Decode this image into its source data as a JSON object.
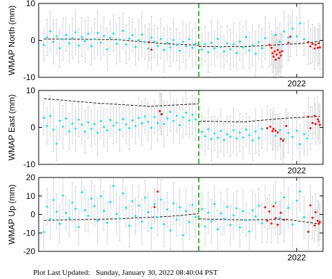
{
  "footer": {
    "label": "Plot Last Updated:",
    "timestamp": "Sunday, January 30, 2022 08:40:04 PST"
  },
  "colors": {
    "point_primary": "#00e5ee",
    "point_recent": "#ff0000",
    "error_bar": "#cccccc",
    "trend_line": "#000000",
    "event_marker": "#33bb33"
  },
  "chart_data": [
    {
      "type": "scatter",
      "ylabel": "WMAP North (mm)",
      "ylim": [
        -10,
        10
      ],
      "yticks": [
        -10,
        0,
        10
      ],
      "xlim": [
        2019.55,
        2022.25
      ],
      "xticks": [
        2022
      ],
      "xticklabels": [
        "2022"
      ],
      "event_marker_x": 2021.07,
      "primary_points": [
        [
          2019.6,
          -1.2
        ],
        [
          2019.63,
          0.8
        ],
        [
          2019.66,
          2.5
        ],
        [
          2019.69,
          -0.4
        ],
        [
          2019.72,
          1.1
        ],
        [
          2019.75,
          -2.1
        ],
        [
          2019.78,
          0.3
        ],
        [
          2019.81,
          1.5
        ],
        [
          2019.84,
          -0.8
        ],
        [
          2019.87,
          0.6
        ],
        [
          2019.9,
          2.2
        ],
        [
          2019.93,
          -1.4
        ],
        [
          2019.96,
          0.9
        ],
        [
          2019.99,
          -0.2
        ],
        [
          2020.02,
          1.8
        ],
        [
          2020.05,
          -1.6
        ],
        [
          2020.08,
          0.4
        ],
        [
          2020.11,
          2.0
        ],
        [
          2020.14,
          -0.6
        ],
        [
          2020.17,
          1.2
        ],
        [
          2020.2,
          -2.4
        ],
        [
          2020.23,
          0.7
        ],
        [
          2020.26,
          1.9
        ],
        [
          2020.29,
          -0.9
        ],
        [
          2020.32,
          0.2
        ],
        [
          2020.35,
          2.6
        ],
        [
          2020.38,
          -1.1
        ],
        [
          2020.41,
          0.5
        ],
        [
          2020.44,
          1.4
        ],
        [
          2020.47,
          -1.8
        ],
        [
          2020.5,
          0.1
        ],
        [
          2020.53,
          1.6
        ],
        [
          2020.56,
          -0.5
        ],
        [
          2020.59,
          -2.2
        ],
        [
          2020.62,
          0.8
        ],
        [
          2020.65,
          -0.3
        ],
        [
          2020.68,
          -1.5
        ],
        [
          2020.71,
          0.4
        ],
        [
          2020.74,
          -2.6
        ],
        [
          2020.77,
          -0.7
        ],
        [
          2020.8,
          -1.9
        ],
        [
          2020.83,
          0.1
        ],
        [
          2020.86,
          -1.2
        ],
        [
          2020.89,
          -2.8
        ],
        [
          2020.92,
          -0.4
        ],
        [
          2020.95,
          -1.6
        ],
        [
          2020.98,
          0.3
        ],
        [
          2021.01,
          -2.0
        ],
        [
          2021.04,
          -0.9
        ],
        [
          2021.1,
          -2.5
        ],
        [
          2021.13,
          -1.0
        ],
        [
          2021.16,
          -3.2
        ],
        [
          2021.19,
          -0.6
        ],
        [
          2021.22,
          -2.2
        ],
        [
          2021.25,
          0.4
        ],
        [
          2021.28,
          -1.8
        ],
        [
          2021.31,
          -3.0
        ],
        [
          2021.34,
          -0.8
        ],
        [
          2021.37,
          -2.4
        ],
        [
          2021.4,
          -1.1
        ],
        [
          2021.43,
          -3.4
        ],
        [
          2021.46,
          -0.3
        ],
        [
          2021.49,
          -1.9
        ],
        [
          2021.52,
          0.9
        ],
        [
          2021.55,
          -2.7
        ],
        [
          2021.58,
          -1.3
        ],
        [
          2021.61,
          -3.6
        ],
        [
          2021.64,
          -0.5
        ],
        [
          2021.67,
          -2.1
        ],
        [
          2021.7,
          0.6
        ],
        [
          2021.8,
          1.5
        ],
        [
          2021.84,
          -0.4
        ],
        [
          2021.88,
          2.4
        ],
        [
          2021.92,
          0.8
        ],
        [
          2021.96,
          3.2
        ],
        [
          2022.0,
          1.1
        ],
        [
          2022.03,
          4.6
        ],
        [
          2022.07,
          0.3
        ]
      ],
      "recent_points": [
        [
          2020.6,
          -0.5
        ],
        [
          2020.62,
          -2.5
        ],
        [
          2021.74,
          -1.2
        ],
        [
          2021.76,
          -2.0
        ],
        [
          2021.77,
          -3.5
        ],
        [
          2021.78,
          -4.4
        ],
        [
          2021.79,
          -3.0
        ],
        [
          2021.8,
          -5.2
        ],
        [
          2021.81,
          -3.8
        ],
        [
          2021.82,
          -2.6
        ],
        [
          2021.83,
          -4.8
        ],
        [
          2021.84,
          -3.3
        ],
        [
          2021.85,
          -4.1
        ],
        [
          2021.86,
          -2.9
        ],
        [
          2021.92,
          -0.6
        ],
        [
          2021.94,
          1.0
        ],
        [
          2022.11,
          -0.5
        ],
        [
          2022.13,
          -1.6
        ],
        [
          2022.15,
          -0.9
        ],
        [
          2022.17,
          -2.2
        ],
        [
          2022.18,
          -1.2
        ],
        [
          2022.2,
          -2.0
        ],
        [
          2022.21,
          -0.8
        ],
        [
          2022.22,
          -1.9
        ]
      ],
      "trend_segments": [
        [
          [
            2019.6,
            0.4
          ],
          [
            2020.3,
            0.2
          ],
          [
            2020.75,
            -0.9
          ],
          [
            2021.07,
            -1.3
          ]
        ],
        [
          [
            2021.07,
            -1.7
          ],
          [
            2021.5,
            -1.7
          ],
          [
            2022.0,
            -0.9
          ],
          [
            2022.22,
            -0.3
          ]
        ]
      ]
    },
    {
      "type": "scatter",
      "ylabel": "WMAP East (mm)",
      "ylim": [
        -10,
        10
      ],
      "yticks": [
        -10,
        0,
        10
      ],
      "xlim": [
        2019.55,
        2022.25
      ],
      "xticks": [
        2022
      ],
      "xticklabels": [
        "2022"
      ],
      "event_marker_x": 2021.07,
      "primary_points": [
        [
          2019.6,
          2.6
        ],
        [
          2019.63,
          0.4
        ],
        [
          2019.66,
          3.1
        ],
        [
          2019.69,
          -0.6
        ],
        [
          2019.72,
          -4.4
        ],
        [
          2019.75,
          1.8
        ],
        [
          2019.78,
          0.2
        ],
        [
          2019.81,
          2.4
        ],
        [
          2019.84,
          -1.1
        ],
        [
          2019.87,
          1.0
        ],
        [
          2019.9,
          -0.3
        ],
        [
          2019.93,
          2.1
        ],
        [
          2019.96,
          0.7
        ],
        [
          2019.99,
          -1.2
        ],
        [
          2020.02,
          1.4
        ],
        [
          2020.05,
          -0.4
        ],
        [
          2020.08,
          0.9
        ],
        [
          2020.11,
          -1.5
        ],
        [
          2020.14,
          1.7
        ],
        [
          2020.17,
          0.1
        ],
        [
          2020.2,
          -0.8
        ],
        [
          2020.23,
          2.0
        ],
        [
          2020.26,
          0.5
        ],
        [
          2020.29,
          1.3
        ],
        [
          2020.32,
          -0.6
        ],
        [
          2020.35,
          2.3
        ],
        [
          2020.38,
          0.8
        ],
        [
          2020.41,
          -0.2
        ],
        [
          2020.44,
          1.9
        ],
        [
          2020.47,
          0.4
        ],
        [
          2020.5,
          2.6
        ],
        [
          2020.53,
          1.1
        ],
        [
          2020.56,
          3.0
        ],
        [
          2020.59,
          1.5
        ],
        [
          2020.62,
          -0.1
        ],
        [
          2020.65,
          2.8
        ],
        [
          2020.68,
          1.2
        ],
        [
          2020.71,
          3.6
        ],
        [
          2020.74,
          0.9
        ],
        [
          2020.77,
          2.4
        ],
        [
          2020.8,
          4.2
        ],
        [
          2020.83,
          1.7
        ],
        [
          2020.86,
          3.1
        ],
        [
          2020.89,
          0.6
        ],
        [
          2020.92,
          2.7
        ],
        [
          2020.95,
          4.0
        ],
        [
          2020.98,
          1.9
        ],
        [
          2021.01,
          3.4
        ],
        [
          2021.04,
          2.2
        ],
        [
          2021.1,
          -1.2
        ],
        [
          2021.13,
          -2.4
        ],
        [
          2021.16,
          -0.5
        ],
        [
          2021.19,
          -3.1
        ],
        [
          2021.22,
          -1.6
        ],
        [
          2021.25,
          -2.8
        ],
        [
          2021.28,
          -0.9
        ],
        [
          2021.31,
          -3.4
        ],
        [
          2021.34,
          -1.9
        ],
        [
          2021.37,
          -2.5
        ],
        [
          2021.4,
          -0.8
        ],
        [
          2021.43,
          -3.0
        ],
        [
          2021.46,
          -1.4
        ],
        [
          2021.49,
          -2.7
        ],
        [
          2021.52,
          -0.6
        ],
        [
          2021.55,
          -2.1
        ],
        [
          2021.58,
          -3.5
        ],
        [
          2021.61,
          -1.1
        ],
        [
          2021.64,
          -2.9
        ],
        [
          2021.67,
          -0.4
        ],
        [
          2021.8,
          -2.3
        ],
        [
          2021.84,
          -0.7
        ],
        [
          2021.88,
          -3.2
        ],
        [
          2021.92,
          -1.5
        ],
        [
          2021.96,
          -2.6
        ],
        [
          2022.0,
          -0.9
        ],
        [
          2022.03,
          -4.5
        ],
        [
          2022.07,
          -1.8
        ],
        [
          2022.1,
          -3.0
        ]
      ],
      "recent_points": [
        [
          2020.7,
          4.4
        ],
        [
          2020.72,
          3.6
        ],
        [
          2021.72,
          -0.2
        ],
        [
          2021.75,
          0.2
        ],
        [
          2021.77,
          -1.0
        ],
        [
          2021.78,
          -0.4
        ],
        [
          2021.8,
          -0.9
        ],
        [
          2021.82,
          -1.4
        ],
        [
          2021.85,
          -3.1
        ],
        [
          2021.87,
          -3.6
        ],
        [
          2021.9,
          0.4
        ],
        [
          2022.11,
          2.9
        ],
        [
          2022.13,
          -0.2
        ],
        [
          2022.15,
          1.2
        ],
        [
          2022.17,
          3.1
        ],
        [
          2022.18,
          0.9
        ],
        [
          2022.2,
          2.2
        ],
        [
          2022.21,
          1.6
        ],
        [
          2022.22,
          0.7
        ]
      ],
      "trend_segments": [
        [
          [
            2019.6,
            7.8
          ],
          [
            2020.1,
            6.6
          ],
          [
            2020.6,
            5.7
          ],
          [
            2021.07,
            6.4
          ]
        ],
        [
          [
            2021.07,
            1.7
          ],
          [
            2021.5,
            1.5
          ],
          [
            2021.85,
            2.4
          ],
          [
            2022.22,
            3.0
          ]
        ]
      ]
    },
    {
      "type": "scatter",
      "ylabel": "WMAP Up (mm)",
      "ylim": [
        -20,
        20
      ],
      "yticks": [
        -20,
        -10,
        0,
        10,
        20
      ],
      "xlim": [
        2019.55,
        2022.25
      ],
      "xticks": [
        2022
      ],
      "xticklabels": [
        "2022"
      ],
      "event_marker_x": 2021.07,
      "primary_points": [
        [
          2019.6,
          -9.5
        ],
        [
          2019.63,
          4.2
        ],
        [
          2019.66,
          -2.6
        ],
        [
          2019.69,
          7.8
        ],
        [
          2019.72,
          1.5
        ],
        [
          2019.75,
          -5.1
        ],
        [
          2019.78,
          10.2
        ],
        [
          2019.81,
          0.8
        ],
        [
          2019.84,
          -1.9
        ],
        [
          2019.87,
          6.4
        ],
        [
          2019.9,
          3.1
        ],
        [
          2019.93,
          -6.8
        ],
        [
          2019.96,
          12.0
        ],
        [
          2019.99,
          2.4
        ],
        [
          2020.02,
          -0.7
        ],
        [
          2020.05,
          8.5
        ],
        [
          2020.08,
          4.6
        ],
        [
          2020.11,
          -3.4
        ],
        [
          2020.14,
          9.8
        ],
        [
          2020.17,
          1.9
        ],
        [
          2020.2,
          -4.5
        ],
        [
          2020.23,
          6.7
        ],
        [
          2020.26,
          15.4
        ],
        [
          2020.29,
          0.3
        ],
        [
          2020.32,
          -2.2
        ],
        [
          2020.35,
          11.4
        ],
        [
          2020.38,
          3.6
        ],
        [
          2020.41,
          -6.1
        ],
        [
          2020.44,
          7.2
        ],
        [
          2020.47,
          -0.9
        ],
        [
          2020.5,
          4.8
        ],
        [
          2020.53,
          -3.9
        ],
        [
          2020.56,
          9.1
        ],
        [
          2020.59,
          1.2
        ],
        [
          2020.62,
          -7.4
        ],
        [
          2020.65,
          5.5
        ],
        [
          2020.68,
          -1.6
        ],
        [
          2020.71,
          8.1
        ],
        [
          2020.74,
          -5.3
        ],
        [
          2020.77,
          2.7
        ],
        [
          2020.8,
          -8.7
        ],
        [
          2020.83,
          6.0
        ],
        [
          2020.86,
          -2.8
        ],
        [
          2020.89,
          3.9
        ],
        [
          2020.92,
          -11.2
        ],
        [
          2020.95,
          1.7
        ],
        [
          2020.98,
          -4.1
        ],
        [
          2021.01,
          5.2
        ],
        [
          2021.04,
          -1.3
        ],
        [
          2021.1,
          2.9
        ],
        [
          2021.13,
          -6.5
        ],
        [
          2021.16,
          1.0
        ],
        [
          2021.19,
          -3.6
        ],
        [
          2021.22,
          5.6
        ],
        [
          2021.25,
          -8.0
        ],
        [
          2021.28,
          0.6
        ],
        [
          2021.31,
          -2.4
        ],
        [
          2021.34,
          4.1
        ],
        [
          2021.37,
          -5.7
        ],
        [
          2021.4,
          -0.5
        ],
        [
          2021.43,
          3.3
        ],
        [
          2021.46,
          -7.0
        ],
        [
          2021.49,
          1.8
        ],
        [
          2021.52,
          -3.0
        ],
        [
          2021.55,
          -9.2
        ],
        [
          2021.58,
          2.2
        ],
        [
          2021.61,
          -1.1
        ],
        [
          2021.64,
          4.7
        ],
        [
          2021.67,
          -4.8
        ],
        [
          2021.8,
          6.3
        ],
        [
          2021.84,
          -2.0
        ],
        [
          2021.88,
          9.2
        ],
        [
          2021.92,
          3.5
        ],
        [
          2021.96,
          -5.4
        ],
        [
          2022.0,
          7.4
        ],
        [
          2022.03,
          12.4
        ],
        [
          2022.07,
          -1.5
        ]
      ],
      "recent_points": [
        [
          2020.65,
          4.0
        ],
        [
          2020.68,
          12.4
        ],
        [
          2021.7,
          3.9
        ],
        [
          2021.72,
          -3.4
        ],
        [
          2021.74,
          1.6
        ],
        [
          2021.76,
          -4.9
        ],
        [
          2021.78,
          4.4
        ],
        [
          2021.8,
          -2.0
        ],
        [
          2021.82,
          -5.6
        ],
        [
          2021.85,
          0.9
        ],
        [
          2021.88,
          -2.9
        ],
        [
          2022.11,
          -9.4
        ],
        [
          2022.13,
          4.9
        ],
        [
          2022.15,
          -1.8
        ],
        [
          2022.17,
          -6.0
        ],
        [
          2022.18,
          1.2
        ],
        [
          2022.2,
          -3.5
        ],
        [
          2022.21,
          -5.0
        ],
        [
          2022.22,
          -4.1
        ]
      ],
      "trend_segments": [
        [
          [
            2019.6,
            -3.2
          ],
          [
            2020.3,
            -2.4
          ],
          [
            2020.8,
            -1.0
          ],
          [
            2021.07,
            0.4
          ]
        ],
        [
          [
            2021.07,
            -2.4
          ],
          [
            2021.5,
            -3.0
          ],
          [
            2021.9,
            -2.6
          ],
          [
            2022.22,
            -5.2
          ]
        ]
      ]
    }
  ]
}
